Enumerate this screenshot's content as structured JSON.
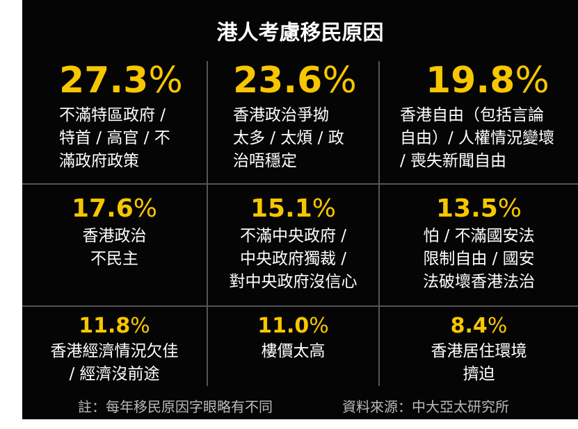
{
  "title": "港人考慮移民原因",
  "items": [
    {
      "value": "27.3",
      "sign": "%",
      "lines": [
        "不滿特區政府 /",
        "特首 / 高官 / 不",
        "滿政府政策"
      ]
    },
    {
      "value": "23.6",
      "sign": "%",
      "lines": [
        "香港政治爭拗",
        "太多 / 太煩 / 政",
        "治唔穩定"
      ]
    },
    {
      "value": "19.8",
      "sign": "%",
      "lines": [
        "香港自由（包括言論",
        "自由）/ 人權情況變壞",
        "/ 喪失新聞自由"
      ]
    },
    {
      "value": "17.6",
      "sign": "%",
      "lines": [
        "香港政治",
        "不民主"
      ]
    },
    {
      "value": "15.1",
      "sign": "%",
      "lines": [
        "不滿中央政府 /",
        "中央政府獨裁 /",
        "對中央政府沒信心"
      ]
    },
    {
      "value": "13.5",
      "sign": "%",
      "lines": [
        "怕 / 不滿國安法",
        "限制自由 / 國安",
        "法破壞香港法治"
      ]
    },
    {
      "value": "11.8",
      "sign": "%",
      "lines": [
        "香港經濟情況欠佳",
        "/ 經濟沒前途"
      ]
    },
    {
      "value": "11.0",
      "sign": "%",
      "lines": [
        "樓價太高"
      ]
    },
    {
      "value": "8.4",
      "sign": "%",
      "lines": [
        "香港居住環境",
        "擠迫"
      ]
    }
  ],
  "footnote": "註：每年移民原因字眼略有不同",
  "source": "資料來源：中大亞太研究所"
}
